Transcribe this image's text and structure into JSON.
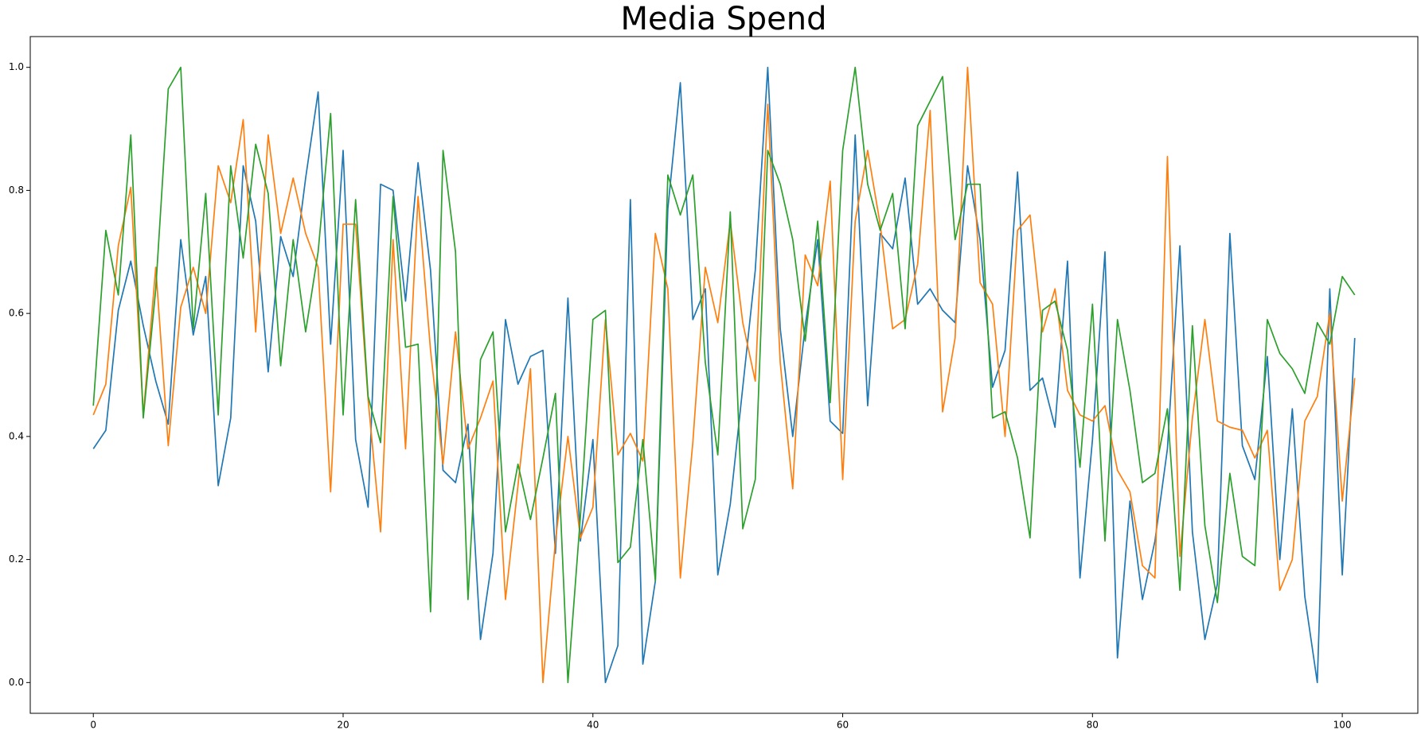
{
  "chart_data": {
    "type": "line",
    "title": "Media Spend",
    "x": [
      0,
      1,
      2,
      3,
      4,
      5,
      6,
      7,
      8,
      9,
      10,
      11,
      12,
      13,
      14,
      15,
      16,
      17,
      18,
      19,
      20,
      21,
      22,
      23,
      24,
      25,
      26,
      27,
      28,
      29,
      30,
      31,
      32,
      33,
      34,
      35,
      36,
      37,
      38,
      39,
      40,
      41,
      42,
      43,
      44,
      45,
      46,
      47,
      48,
      49,
      50,
      51,
      52,
      53,
      54,
      55,
      56,
      57,
      58,
      59,
      60,
      61,
      62,
      63,
      64,
      65,
      66,
      67,
      68,
      69,
      70,
      71,
      72,
      73,
      74,
      75,
      76,
      77,
      78,
      79,
      80,
      81,
      82,
      83,
      84,
      85,
      86,
      87,
      88,
      89,
      90,
      91,
      92,
      93,
      94,
      95,
      96,
      97,
      98,
      99,
      100,
      101
    ],
    "series": [
      {
        "color": "#1f77b4",
        "values": [
          0.38,
          0.41,
          0.605,
          0.685,
          0.58,
          0.49,
          0.42,
          0.72,
          0.565,
          0.66,
          0.32,
          0.43,
          0.84,
          0.75,
          0.505,
          0.725,
          0.66,
          0.82,
          0.96,
          0.55,
          0.865,
          0.395,
          0.285,
          0.81,
          0.8,
          0.62,
          0.845,
          0.67,
          0.345,
          0.325,
          0.42,
          0.07,
          0.21,
          0.59,
          0.485,
          0.53,
          0.54,
          0.21,
          0.625,
          0.23,
          0.395,
          0.0,
          0.06,
          0.785,
          0.03,
          0.165,
          0.77,
          0.975,
          0.59,
          0.64,
          0.175,
          0.29,
          0.48,
          0.67,
          1.0,
          0.575,
          0.4,
          0.58,
          0.72,
          0.425,
          0.405,
          0.89,
          0.45,
          0.73,
          0.705,
          0.82,
          0.615,
          0.64,
          0.605,
          0.585,
          0.84,
          0.72,
          0.48,
          0.54,
          0.83,
          0.475,
          0.495,
          0.415,
          0.685,
          0.17,
          0.395,
          0.7,
          0.04,
          0.295,
          0.135,
          0.23,
          0.38,
          0.71,
          0.245,
          0.07,
          0.16,
          0.73,
          0.385,
          0.33,
          0.53,
          0.2,
          0.445,
          0.14,
          0.0,
          0.64,
          0.175,
          0.56
        ]
      },
      {
        "color": "#ff7f0e",
        "values": [
          0.435,
          0.485,
          0.71,
          0.805,
          0.435,
          0.675,
          0.385,
          0.61,
          0.675,
          0.6,
          0.84,
          0.78,
          0.915,
          0.57,
          0.89,
          0.73,
          0.82,
          0.73,
          0.675,
          0.31,
          0.745,
          0.745,
          0.46,
          0.245,
          0.72,
          0.38,
          0.79,
          0.54,
          0.355,
          0.57,
          0.38,
          0.43,
          0.49,
          0.135,
          0.32,
          0.51,
          0.0,
          0.23,
          0.4,
          0.235,
          0.285,
          0.59,
          0.37,
          0.405,
          0.36,
          0.73,
          0.64,
          0.17,
          0.39,
          0.675,
          0.585,
          0.75,
          0.585,
          0.49,
          0.94,
          0.52,
          0.315,
          0.695,
          0.645,
          0.815,
          0.33,
          0.75,
          0.865,
          0.745,
          0.575,
          0.59,
          0.68,
          0.93,
          0.44,
          0.56,
          1.0,
          0.65,
          0.615,
          0.4,
          0.735,
          0.76,
          0.57,
          0.64,
          0.475,
          0.435,
          0.425,
          0.45,
          0.345,
          0.31,
          0.19,
          0.17,
          0.855,
          0.205,
          0.43,
          0.59,
          0.425,
          0.415,
          0.41,
          0.365,
          0.41,
          0.15,
          0.2,
          0.425,
          0.465,
          0.6,
          0.295,
          0.495
        ]
      },
      {
        "color": "#2ca02c",
        "values": [
          0.45,
          0.735,
          0.63,
          0.89,
          0.43,
          0.64,
          0.965,
          1.0,
          0.575,
          0.795,
          0.435,
          0.84,
          0.69,
          0.875,
          0.795,
          0.515,
          0.72,
          0.57,
          0.7,
          0.925,
          0.435,
          0.785,
          0.465,
          0.39,
          0.79,
          0.545,
          0.55,
          0.115,
          0.865,
          0.7,
          0.135,
          0.525,
          0.57,
          0.245,
          0.355,
          0.265,
          0.365,
          0.47,
          0.0,
          0.27,
          0.59,
          0.605,
          0.195,
          0.22,
          0.395,
          0.165,
          0.825,
          0.76,
          0.825,
          0.52,
          0.37,
          0.765,
          0.25,
          0.33,
          0.865,
          0.81,
          0.72,
          0.555,
          0.75,
          0.455,
          0.865,
          1.0,
          0.81,
          0.735,
          0.795,
          0.575,
          0.905,
          0.945,
          0.985,
          0.72,
          0.81,
          0.81,
          0.43,
          0.44,
          0.365,
          0.235,
          0.605,
          0.62,
          0.54,
          0.35,
          0.615,
          0.23,
          0.59,
          0.475,
          0.325,
          0.34,
          0.445,
          0.15,
          0.58,
          0.255,
          0.13,
          0.34,
          0.205,
          0.19,
          0.59,
          0.535,
          0.51,
          0.47,
          0.585,
          0.55,
          0.66,
          0.63
        ]
      }
    ],
    "xlim": [
      -5.05,
      106.05
    ],
    "ylim": [
      -0.05,
      1.05
    ],
    "xticks": [
      0,
      20,
      40,
      60,
      80,
      100
    ],
    "yticks": [
      {
        "value": 0,
        "label": "0.0"
      },
      0.2,
      0.4,
      0.6,
      0.8,
      {
        "value": 1,
        "label": "1.0"
      }
    ]
  }
}
